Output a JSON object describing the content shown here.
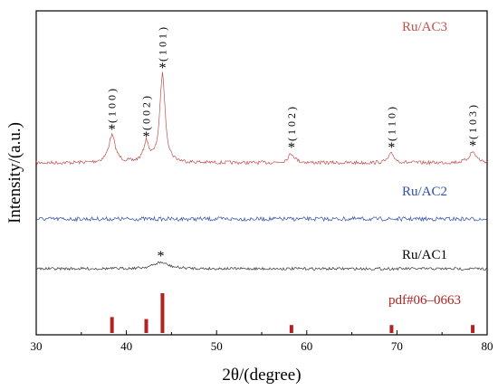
{
  "chart_data": {
    "type": "line",
    "xlabel": "2θ/(degree)",
    "ylabel": "Intensity/(a.u.)",
    "xlim": [
      30,
      80
    ],
    "x_ticks": [
      30,
      40,
      50,
      60,
      70,
      80
    ],
    "series": [
      {
        "name": "Ru/AC3",
        "color": "#c0504d",
        "peaks": [
          {
            "x": 38.4,
            "label": "( 1 0 0 )"
          },
          {
            "x": 42.2,
            "label": "( 0 0 2 )"
          },
          {
            "x": 44.0,
            "label": "( 1 0 1 )"
          },
          {
            "x": 58.3,
            "label": "( 1 0 2 )"
          },
          {
            "x": 69.4,
            "label": "( 1 1 0 )"
          },
          {
            "x": 78.4,
            "label": "( 1 0 3 )"
          }
        ]
      },
      {
        "name": "Ru/AC2",
        "color": "#2e4fa8",
        "peaks": []
      },
      {
        "name": "Ru/AC1",
        "color": "#333333",
        "peaks": [
          {
            "x": 43.8,
            "label": ""
          }
        ]
      },
      {
        "name": "pdf#06–0663",
        "color": "#b22222",
        "type": "reference-sticks",
        "sticks": [
          {
            "x": 38.4,
            "intensity": 0.4
          },
          {
            "x": 42.2,
            "intensity": 0.35
          },
          {
            "x": 44.0,
            "intensity": 1.0
          },
          {
            "x": 58.3,
            "intensity": 0.2
          },
          {
            "x": 69.4,
            "intensity": 0.2
          },
          {
            "x": 78.4,
            "intensity": 0.2
          }
        ]
      }
    ]
  }
}
